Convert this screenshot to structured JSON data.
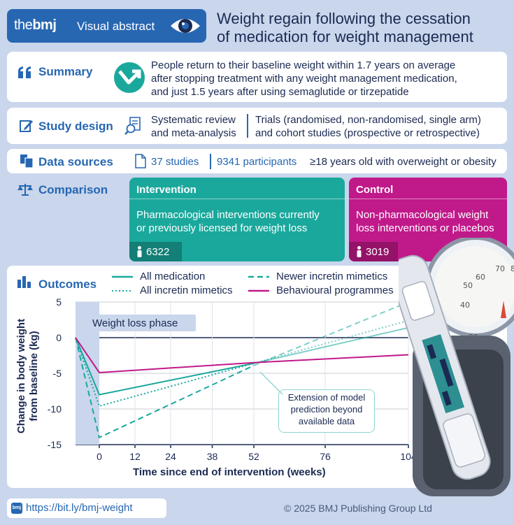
{
  "header": {
    "brand_the": "the",
    "brand_bmj": "bmj",
    "brand_label": "Visual abstract",
    "title_line1": "Weight regain following the cessation",
    "title_line2": "of medication for weight management"
  },
  "summary": {
    "label": "Summary",
    "line1": "People return to their baseline weight within 1.7 years on average",
    "line2": "after stopping treatment with any weight management medication,",
    "line3": "and just 1.5 years after using semaglutide or tirzepatide"
  },
  "study_design": {
    "label": "Study design",
    "left_line1": "Systematic review",
    "left_line2": "and meta-analysis",
    "right_line1": "Trials (randomised, non-randomised, single arm)",
    "right_line2": "and cohort studies (prospective or retrospective)"
  },
  "data_sources": {
    "label": "Data sources",
    "studies": "37 studies",
    "participants": "9341 participants",
    "criteria": "≥18 years old with overweight or obesity"
  },
  "comparison": {
    "label": "Comparison",
    "intervention": {
      "title": "Intervention",
      "line1": "Pharmacological interventions currently",
      "line2": "or previously licensed for weight loss",
      "count": "6322"
    },
    "control": {
      "title": "Control",
      "line1": "Non-pharmacological weight",
      "line2": "loss interventions or placebos",
      "count": "3019"
    }
  },
  "outcomes": {
    "label": "Outcomes",
    "legend": {
      "all_medication": "All medication",
      "all_incretin": "All incretin mimetics",
      "newer_incretin": "Newer incretin mimetics",
      "behavioural": "Behavioural programmes"
    },
    "phase_label": "Weight loss phase",
    "annotation_line1": "Extension of model",
    "annotation_line2": "prediction beyond",
    "annotation_line3": "available data"
  },
  "chart_data": {
    "type": "line",
    "xlabel": "Time since end of intervention (weeks)",
    "ylabel_line1": "Change in body weight",
    "ylabel_line2": "from baseline (kg)",
    "xlim": [
      -8,
      104
    ],
    "ylim": [
      -15,
      5
    ],
    "xticks": [
      "0",
      "12",
      "24",
      "38",
      "52",
      "76",
      "104"
    ],
    "xtick_values": [
      0,
      12,
      24,
      38,
      52,
      76,
      104
    ],
    "yticks": [
      "5",
      "0",
      "-5",
      "-10",
      "-15"
    ],
    "ytick_values": [
      5,
      0,
      -5,
      -10,
      -15
    ],
    "series": [
      {
        "name": "All medication",
        "color": "#1aa89c",
        "style": "solid",
        "x": [
          -8,
          0,
          52,
          104
        ],
        "y": [
          0,
          -8,
          -3.6,
          1.4
        ]
      },
      {
        "name": "All incretin mimetics",
        "color": "#1aa89c",
        "style": "dotted",
        "x": [
          -8,
          0,
          52,
          104
        ],
        "y": [
          0,
          -9.6,
          -3.6,
          2.4
        ]
      },
      {
        "name": "Newer incretin mimetics",
        "color": "#1aa89c",
        "style": "dashed",
        "x": [
          -8,
          0,
          52,
          104
        ],
        "y": [
          0,
          -14,
          -3.9,
          5
        ]
      },
      {
        "name": "Behavioural programmes",
        "color": "#c0198a",
        "style": "solid",
        "x": [
          -8,
          0,
          52,
          104
        ],
        "y": [
          0,
          -4.9,
          -3.5,
          -2.4
        ]
      }
    ]
  },
  "footer": {
    "link": "https://bit.ly/bmj-weight",
    "copyright": "© 2025 BMJ Publishing Group Ltd"
  },
  "colors": {
    "brand_blue": "#2767b2",
    "teal": "#1aa89c",
    "magenta": "#c0198a",
    "background": "#c9d6ec"
  }
}
